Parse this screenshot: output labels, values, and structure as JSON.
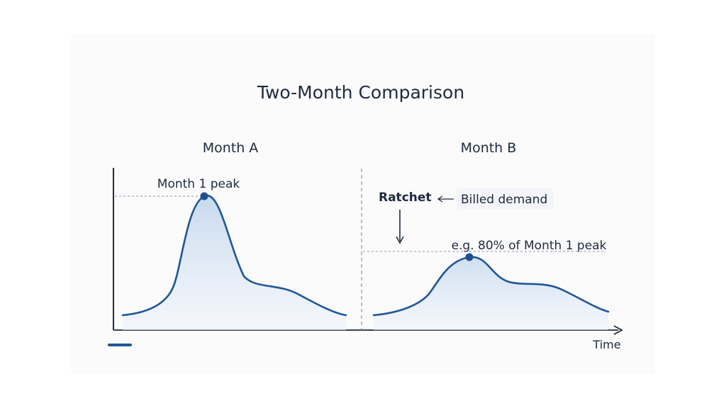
{
  "title": "Two-Month Comparison",
  "panels": {
    "month_a": {
      "label": "Month A",
      "peak_label": "Month 1 peak"
    },
    "month_b": {
      "label": "Month B",
      "ratchet_label": "Ratchet",
      "billed_demand_label": "Billed demand",
      "threshold_label": "e.g. 80% of Month 1 peak"
    }
  },
  "x_axis_label": "Time",
  "colors": {
    "curve": "#1f5699",
    "axis": "#1f2a3c",
    "guide": "#8c96a8",
    "fill": "#c9dbef"
  }
}
